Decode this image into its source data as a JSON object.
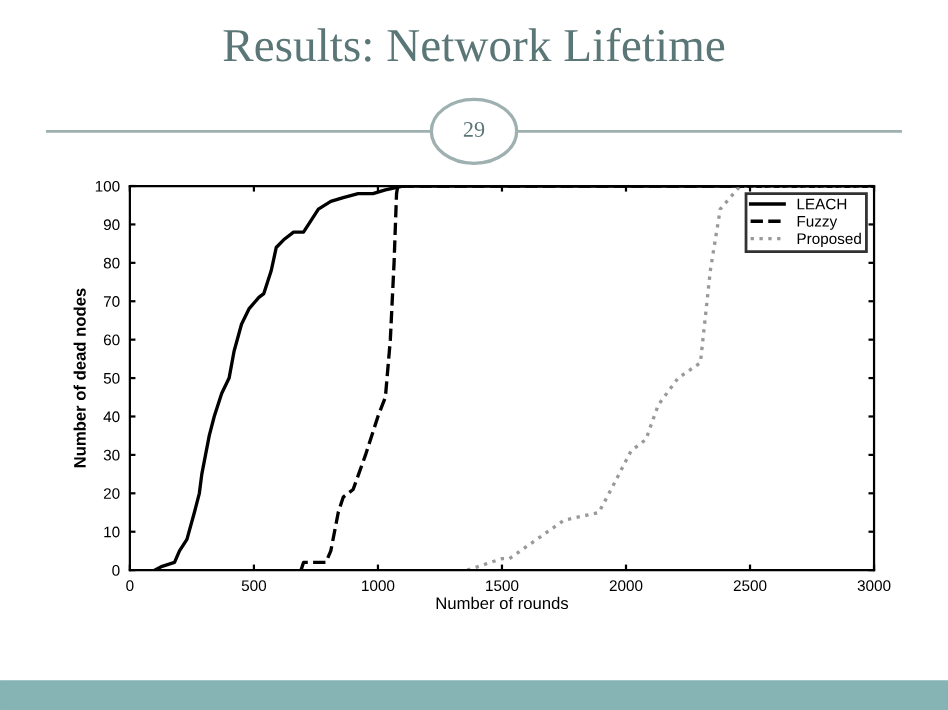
{
  "chart_data": {
    "type": "line",
    "title": "Results: Network Lifetime",
    "annotations": [
      "29"
    ],
    "xlabel": "Number of rounds",
    "ylabel": "Number of dead nodes",
    "xlim": [
      0,
      3000
    ],
    "ylim": [
      0,
      100
    ],
    "xticks": [
      0,
      500,
      1000,
      1500,
      2000,
      2500,
      3000
    ],
    "yticks": [
      0,
      10,
      20,
      30,
      40,
      50,
      60,
      70,
      80,
      90,
      100
    ],
    "grid": false,
    "legend": "top right",
    "series": [
      {
        "name": "LEACH",
        "color": "#000000",
        "line_style": "solid",
        "x": [
          100,
          130,
          180,
          200,
          230,
          260,
          280,
          290,
          320,
          340,
          370,
          400,
          420,
          450,
          480,
          520,
          540,
          570,
          590,
          620,
          660,
          700,
          730,
          760,
          810,
          860,
          920,
          980,
          1030,
          1100,
          3000
        ],
        "values": [
          0,
          1,
          2,
          5,
          8,
          15,
          20,
          25,
          35,
          40,
          46,
          50,
          57,
          64,
          68,
          71,
          72,
          78,
          84,
          86,
          88,
          88,
          91,
          94,
          96,
          97,
          98,
          98,
          99,
          100,
          100
        ]
      },
      {
        "name": "Fuzzy",
        "color": "#000000",
        "line_style": "dashed",
        "x": [
          690,
          700,
          790,
          810,
          840,
          860,
          900,
          950,
          1000,
          1030,
          1050,
          1065,
          1075,
          1080,
          3000
        ],
        "values": [
          0,
          2,
          2,
          5,
          15,
          19,
          21,
          30,
          40,
          45,
          60,
          80,
          98,
          100,
          100
        ]
      },
      {
        "name": "Proposed",
        "color": "#999999",
        "line_style": "dotted",
        "x": [
          1360,
          1500,
          1530,
          1640,
          1750,
          1890,
          1940,
          2020,
          2080,
          2130,
          2210,
          2300,
          2340,
          2380,
          2460,
          3000
        ],
        "values": [
          0,
          3,
          3,
          8,
          13,
          15,
          21,
          31,
          34,
          43,
          50,
          54,
          78,
          94,
          100,
          100
        ]
      }
    ]
  }
}
